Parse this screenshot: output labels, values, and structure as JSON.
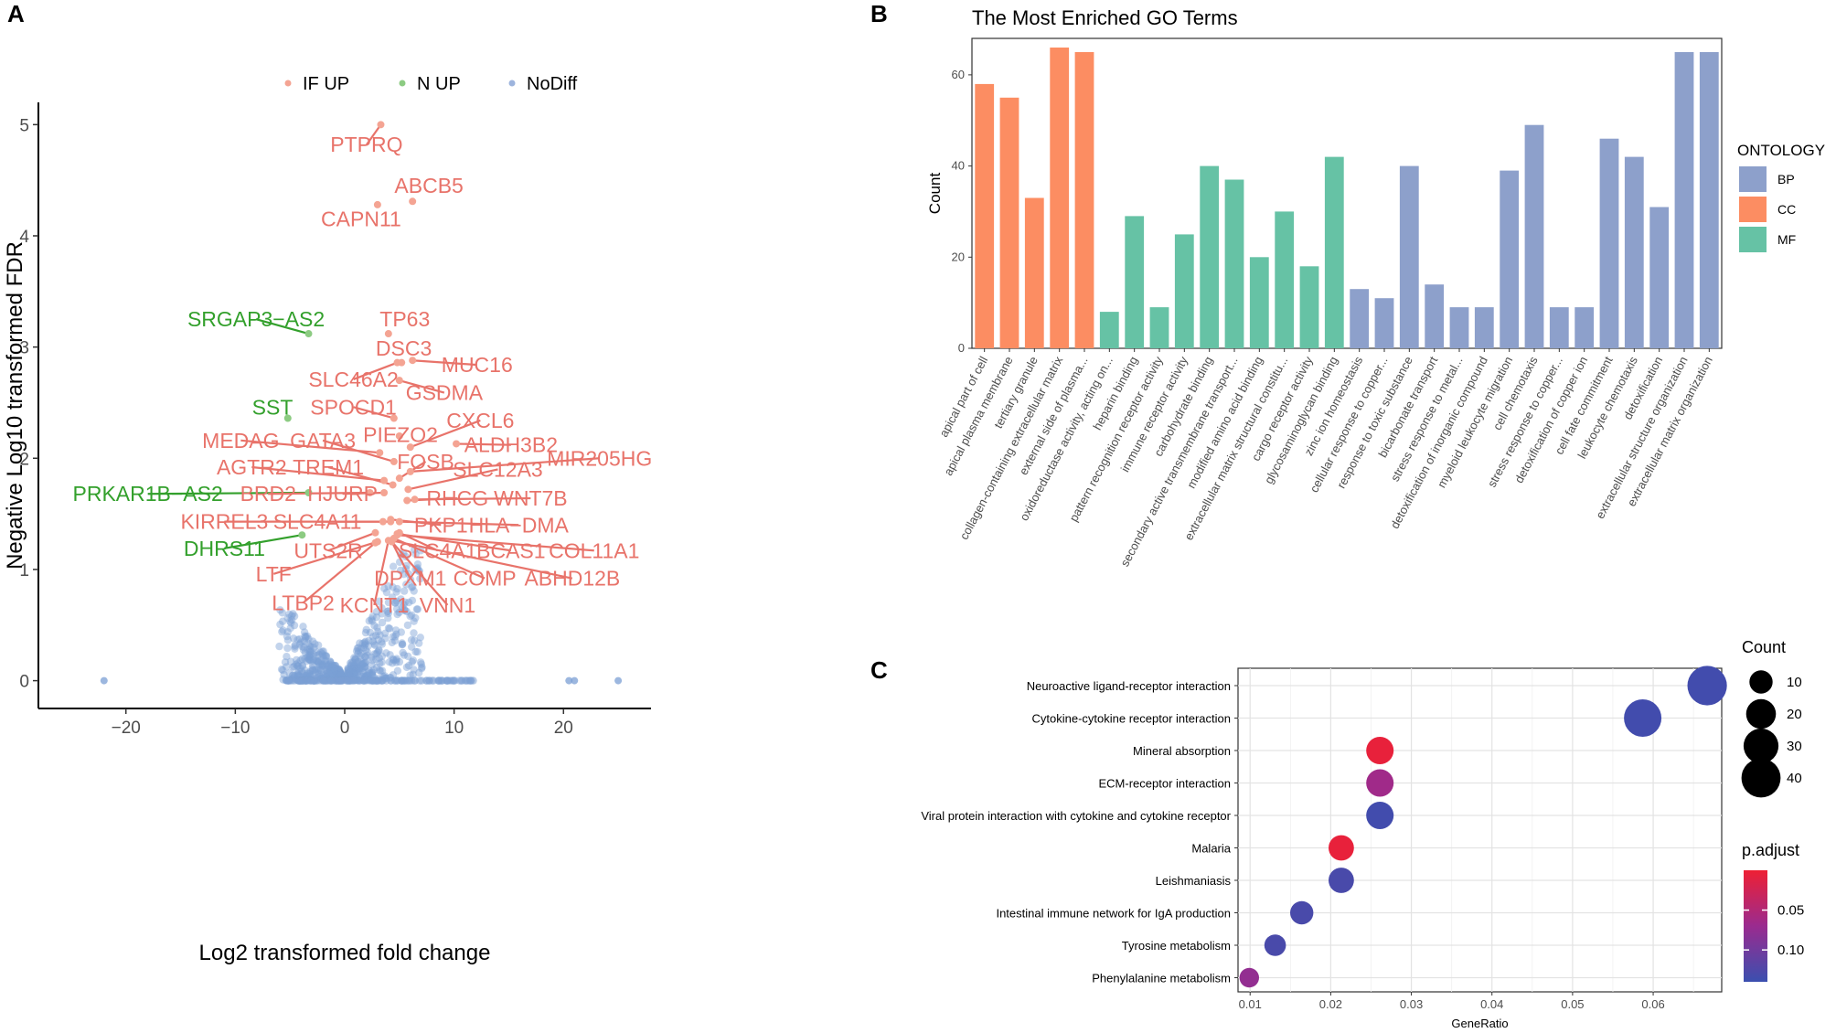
{
  "panels": {
    "a": "A",
    "b": "B",
    "c": "C"
  },
  "chart_data": [
    {
      "type": "scatter",
      "panel": "A",
      "title": "",
      "xlabel": "Log2 transformed fold change",
      "ylabel": "Negative Log10 transformed FDR",
      "xlim": [
        -28,
        28
      ],
      "ylim": [
        -0.25,
        5.2
      ],
      "xticks": [
        -20,
        -10,
        0,
        10,
        20
      ],
      "yticks": [
        0,
        1,
        2,
        3,
        4,
        5
      ],
      "legend": {
        "placement": "top",
        "entries": [
          {
            "label": "IF UP",
            "color": "#F4A493"
          },
          {
            "label": "N UP",
            "color": "#8CCB82"
          },
          {
            "label": "NoDiff",
            "color": "#9DB4DD"
          }
        ]
      },
      "colors": {
        "IF UP": "#E8736A",
        "N UP": "#33A02C",
        "NoDiff": "#7B9FD4"
      },
      "outlier_points": [
        {
          "x": -22,
          "y": 0
        },
        {
          "x": 20.5,
          "y": 0
        },
        {
          "x": 21,
          "y": 0
        },
        {
          "x": 25,
          "y": 0
        }
      ],
      "labeled_points": [
        {
          "gene": "PTPRQ",
          "group": "IF UP",
          "x": 3.3,
          "y": 5.0,
          "lx": 2.0,
          "ly": 4.82
        },
        {
          "gene": "ABCB5",
          "group": "IF UP",
          "x": 6.2,
          "y": 4.31,
          "lx": 7.7,
          "ly": 4.45
        },
        {
          "gene": "CAPN11",
          "group": "IF UP",
          "x": 3.0,
          "y": 4.28,
          "lx": 1.5,
          "ly": 4.15
        },
        {
          "gene": "SRGAP3−AS2",
          "group": "N UP",
          "x": -3.3,
          "y": 3.12,
          "lx": -8.1,
          "ly": 3.25
        },
        {
          "gene": "TP63",
          "group": "IF UP",
          "x": 4.0,
          "y": 3.12,
          "lx": 5.5,
          "ly": 3.25
        },
        {
          "gene": "DSC3",
          "group": "IF UP",
          "x": 5.2,
          "y": 2.86,
          "lx": 5.4,
          "ly": 2.99
        },
        {
          "gene": "MUC16",
          "group": "IF UP",
          "x": 6.2,
          "y": 2.88,
          "lx": 12.1,
          "ly": 2.84
        },
        {
          "gene": "SLC46A2",
          "group": "IF UP",
          "x": 4.8,
          "y": 2.86,
          "lx": 0.8,
          "ly": 2.71
        },
        {
          "gene": "GSDMA",
          "group": "IF UP",
          "x": 5.0,
          "y": 2.7,
          "lx": 9.1,
          "ly": 2.59
        },
        {
          "gene": "SST",
          "group": "N UP",
          "x": -5.2,
          "y": 2.36,
          "lx": -6.6,
          "ly": 2.46
        },
        {
          "gene": "SPOCD1",
          "group": "IF UP",
          "x": 4.5,
          "y": 2.36,
          "lx": 0.8,
          "ly": 2.46
        },
        {
          "gene": "CXCL6",
          "group": "IF UP",
          "x": 6.0,
          "y": 2.1,
          "lx": 12.4,
          "ly": 2.34
        },
        {
          "gene": "PIEZO2",
          "group": "IF UP",
          "x": 5.0,
          "y": 2.2,
          "lx": 5.1,
          "ly": 2.21
        },
        {
          "gene": "MEDAG",
          "group": "IF UP",
          "x": 3.2,
          "y": 2.05,
          "lx": -9.5,
          "ly": 2.16
        },
        {
          "gene": "GATA3",
          "group": "IF UP",
          "x": 4.5,
          "y": 1.97,
          "lx": -2.0,
          "ly": 2.16
        },
        {
          "gene": "ALDH3B2",
          "group": "IF UP",
          "x": 10.2,
          "y": 2.13,
          "lx": 15.2,
          "ly": 2.12
        },
        {
          "gene": "MIR205HG",
          "group": "IF UP",
          "x": 6.0,
          "y": 1.88,
          "lx": 23.3,
          "ly": 2.0
        },
        {
          "gene": "FOSB",
          "group": "IF UP",
          "x": 5.0,
          "y": 1.82,
          "lx": 7.4,
          "ly": 1.97
        },
        {
          "gene": "AGTR2",
          "group": "IF UP",
          "x": 3.6,
          "y": 1.8,
          "lx": -8.5,
          "ly": 1.92
        },
        {
          "gene": "TREM1",
          "group": "IF UP",
          "x": 4.4,
          "y": 1.76,
          "lx": -1.5,
          "ly": 1.92
        },
        {
          "gene": "SLC12A3",
          "group": "IF UP",
          "x": 5.8,
          "y": 1.72,
          "lx": 14.0,
          "ly": 1.9
        },
        {
          "gene": "PRKAR1B−AS2",
          "group": "N UP",
          "x": -3.3,
          "y": 1.69,
          "lx": -18.0,
          "ly": 1.68
        },
        {
          "gene": "BRD2",
          "group": "IF UP",
          "x": 2.3,
          "y": 1.69,
          "lx": -7.0,
          "ly": 1.68
        },
        {
          "gene": "HJURP",
          "group": "IF UP",
          "x": 3.6,
          "y": 1.69,
          "lx": -0.2,
          "ly": 1.68
        },
        {
          "gene": "RHCG",
          "group": "IF UP",
          "x": 5.7,
          "y": 1.62,
          "lx": 10.3,
          "ly": 1.64
        },
        {
          "gene": "WNT7B",
          "group": "IF UP",
          "x": 6.4,
          "y": 1.63,
          "lx": 17.0,
          "ly": 1.64
        },
        {
          "gene": "KIRREL3",
          "group": "IF UP",
          "x": 3.5,
          "y": 1.43,
          "lx": -11.0,
          "ly": 1.43
        },
        {
          "gene": "SLC4A11",
          "group": "IF UP",
          "x": 4.2,
          "y": 1.43,
          "lx": -2.5,
          "ly": 1.43
        },
        {
          "gene": "PKP1",
          "group": "IF UP",
          "x": 4.2,
          "y": 1.45,
          "lx": 8.8,
          "ly": 1.4
        },
        {
          "gene": "HLA−DMA",
          "group": "IF UP",
          "x": 5.0,
          "y": 1.43,
          "lx": 15.9,
          "ly": 1.4
        },
        {
          "gene": "DHRS11",
          "group": "N UP",
          "x": -3.9,
          "y": 1.31,
          "lx": -11.0,
          "ly": 1.19
        },
        {
          "gene": "UTS2R",
          "group": "IF UP",
          "x": 2.8,
          "y": 1.33,
          "lx": -1.5,
          "ly": 1.17
        },
        {
          "gene": "SLC4A1",
          "group": "IF UP",
          "x": 5.0,
          "y": 1.33,
          "lx": 8.5,
          "ly": 1.17
        },
        {
          "gene": "BCAS1",
          "group": "IF UP",
          "x": 4.8,
          "y": 1.32,
          "lx": 15.2,
          "ly": 1.17
        },
        {
          "gene": "COL11A1",
          "group": "IF UP",
          "x": 4.8,
          "y": 1.31,
          "lx": 22.8,
          "ly": 1.17
        },
        {
          "gene": "LTF",
          "group": "IF UP",
          "x": 3.0,
          "y": 1.25,
          "lx": -6.5,
          "ly": 0.96
        },
        {
          "gene": "DPXM1",
          "group": "IF UP",
          "x": 4.3,
          "y": 1.25,
          "lx": 6.0,
          "ly": 0.92
        },
        {
          "gene": "COMP",
          "group": "IF UP",
          "x": 4.5,
          "y": 1.28,
          "lx": 12.8,
          "ly": 0.92
        },
        {
          "gene": "ABHD12B",
          "group": "IF UP",
          "x": 4.3,
          "y": 1.26,
          "lx": 20.8,
          "ly": 0.92
        },
        {
          "gene": "LTBP2",
          "group": "IF UP",
          "x": 2.8,
          "y": 1.24,
          "lx": -3.8,
          "ly": 0.7
        },
        {
          "gene": "KCNT1",
          "group": "IF UP",
          "x": 4.0,
          "y": 1.26,
          "lx": 2.7,
          "ly": 0.68
        },
        {
          "gene": "VNN1",
          "group": "IF UP",
          "x": 4.3,
          "y": 1.25,
          "lx": 9.4,
          "ly": 0.68
        }
      ]
    },
    {
      "type": "bar",
      "panel": "B",
      "title": "The Most Enriched GO Terms",
      "xlabel": "",
      "ylabel": "Count",
      "ylim": [
        0,
        68
      ],
      "yticks": [
        0,
        20,
        40,
        60
      ],
      "legend": {
        "title": "ONTOLOGY",
        "placement": "right",
        "entries": [
          {
            "label": "BP",
            "color": "#8DA0CB"
          },
          {
            "label": "CC",
            "color": "#FC8D62"
          },
          {
            "label": "MF",
            "color": "#66C2A5"
          }
        ]
      },
      "colors": {
        "BP": "#8DA0CB",
        "CC": "#FC8D62",
        "MF": "#66C2A5"
      },
      "categories": [
        "apical part of cell",
        "apical plasma membrane",
        "tertiary granule",
        "collagen-containing extracellular matrix",
        "external side of plasma...",
        "oxidoreductase activity, acting on...",
        "heparin binding",
        "pattern recognition receptor activity",
        "immune receptor activity",
        "carbohydrate binding",
        "secondary active transmembrane transport...",
        "modified amino acid binding",
        "extracellular matrix structural constitu...",
        "cargo receptor activity",
        "glycosaminoglycan binding",
        "zinc ion homeostasis",
        "cellular response to copper...",
        "response to toxic substance",
        "bicarbonate transport",
        "stress response to metal...",
        "detoxification of inorganic compound",
        "myeloid leukocyte migration",
        "cell chemotaxis",
        "stress response to copper...",
        "detoxification of copper ion",
        "cell fate commitment",
        "leukocyte chemotaxis",
        "detoxification",
        "extracellular structure organization",
        "extracellular matrix organization"
      ],
      "groups": [
        "CC",
        "CC",
        "CC",
        "CC",
        "CC",
        "MF",
        "MF",
        "MF",
        "MF",
        "MF",
        "MF",
        "MF",
        "MF",
        "MF",
        "MF",
        "BP",
        "BP",
        "BP",
        "BP",
        "BP",
        "BP",
        "BP",
        "BP",
        "BP",
        "BP",
        "BP",
        "BP",
        "BP",
        "BP",
        "BP"
      ],
      "values": [
        58,
        55,
        33,
        66,
        65,
        8,
        29,
        9,
        25,
        40,
        37,
        20,
        30,
        18,
        42,
        13,
        11,
        40,
        14,
        9,
        9,
        39,
        49,
        9,
        9,
        46,
        42,
        31,
        65,
        65
      ]
    },
    {
      "type": "scatter",
      "panel": "C",
      "title": "",
      "xlabel": "GeneRatio",
      "ylabel": "",
      "xlim": [
        0.0085,
        0.0685
      ],
      "xticks": [
        "0.01",
        "0.02",
        "0.03",
        "0.04",
        "0.05",
        "0.06"
      ],
      "size_legend": {
        "title": "Count",
        "values": [
          10,
          20,
          30,
          40
        ]
      },
      "color_legend": {
        "title": "p.adjust",
        "ticks": [
          "0.05",
          "0.10"
        ],
        "range": [
          0.0,
          0.14
        ],
        "low_color": "#EE2034",
        "high_color": "#3B4FAF"
      },
      "categories": [
        "Neuroactive ligand-receptor interaction",
        "Cytokine-cytokine receptor interaction",
        "Mineral absorption",
        "ECM-receptor interaction",
        "Viral protein interaction with cytokine and cytokine receptor",
        "Malaria",
        "Leishmaniasis",
        "Intestinal immune network for IgA production",
        "Tyrosine metabolism",
        "Phenylalanine metabolism"
      ],
      "gene_ratio": [
        0.0667,
        0.0587,
        0.0261,
        0.0261,
        0.0261,
        0.0213,
        0.0213,
        0.0164,
        0.0131,
        0.0099
      ],
      "count": [
        41,
        36,
        16,
        16,
        16,
        13,
        13,
        10,
        8,
        6
      ],
      "p_adjust": [
        0.135,
        0.135,
        0.005,
        0.065,
        0.135,
        0.005,
        0.13,
        0.13,
        0.13,
        0.075
      ]
    }
  ]
}
